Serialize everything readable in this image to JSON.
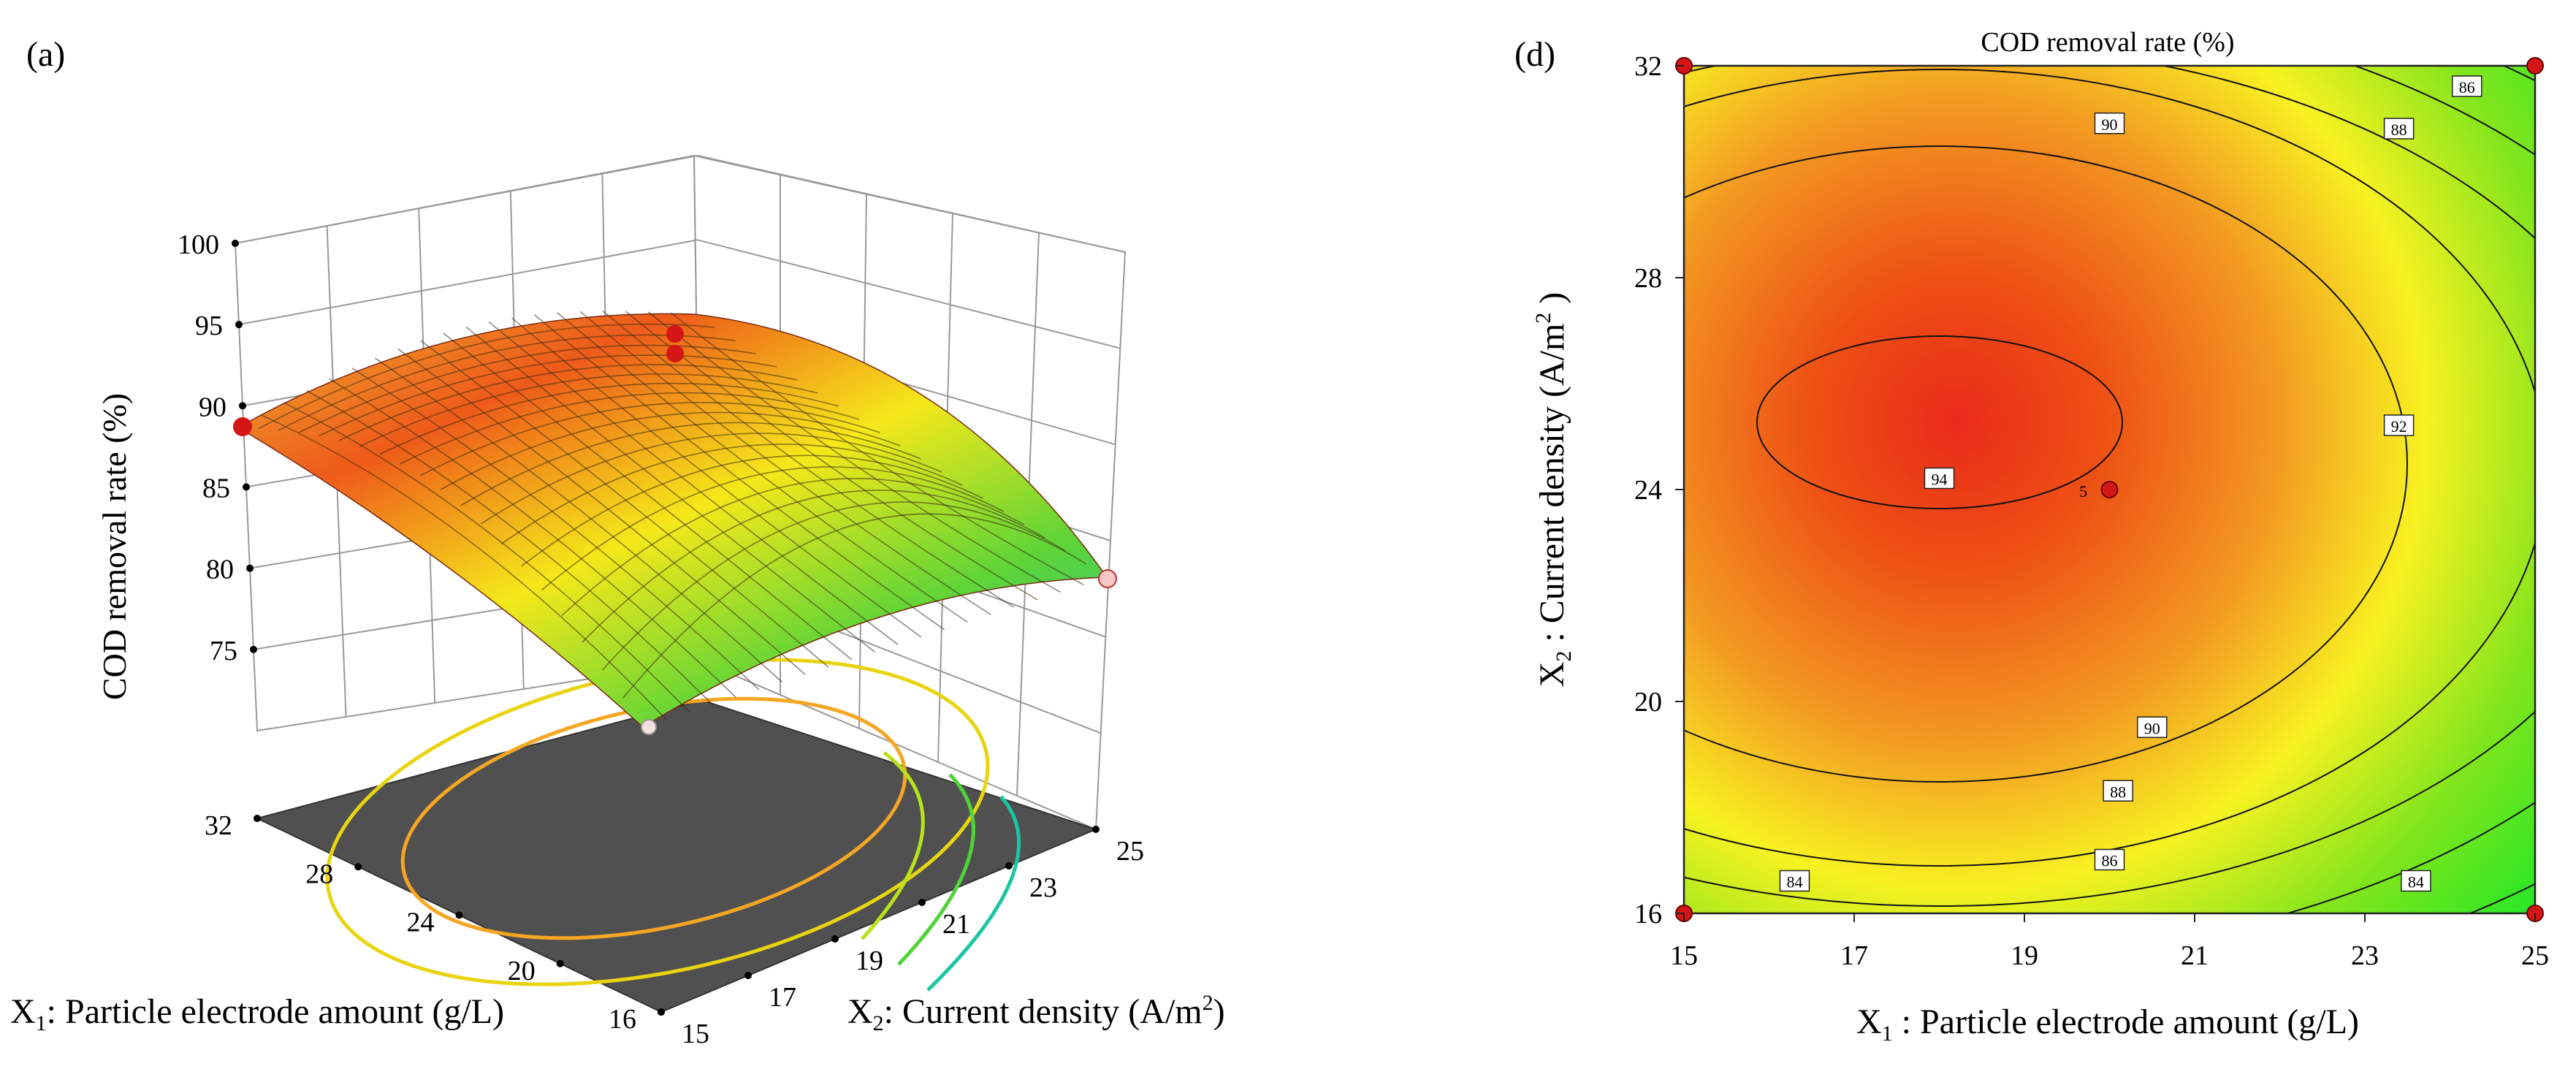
{
  "panel_a": {
    "label": "(a)",
    "zlabel": "COD removal rate (%)",
    "x1_label_main": "X",
    "x1_label_sub": "1",
    "x1_label_rest": ": Particle electrode amount (g/L)",
    "x2_label_main": "X",
    "x2_label_sub": "2",
    "x2_label_rest": ": Current density (A/m",
    "x2_label_sup": "2",
    "x2_label_end": ")"
  },
  "panel_d": {
    "label": "(d)",
    "title": "COD removal rate (%)",
    "xlabel_main": "X",
    "xlabel_sub": "1",
    "xlabel_rest": " : Particle electrode amount (g/L)",
    "ylabel_main": "X",
    "ylabel_sub": "2",
    "ylabel_rest": " : Current density (A/m",
    "ylabel_sup": "2",
    "ylabel_end": " )",
    "center_point_label": "5"
  },
  "chart_data": [
    {
      "type": "surface3d",
      "title": "",
      "zlabel": "COD removal rate (%)",
      "xlabel": "X1: Particle electrode amount (g/L)",
      "ylabel": "X2: Current density (A/m2)",
      "z_ticks": [
        75,
        80,
        85,
        90,
        95,
        100
      ],
      "x1_ticks": [
        16,
        20,
        24,
        28,
        32
      ],
      "x2_ticks": [
        15,
        17,
        19,
        21,
        23,
        25
      ],
      "zlim": [
        70,
        100
      ],
      "points": [
        {
          "label": "center",
          "z": 95.2
        },
        {
          "label": "center",
          "z": 94.1
        },
        {
          "label": "corner",
          "z": 88.9
        },
        {
          "label": "corner",
          "z": 79.5
        },
        {
          "label": "corner",
          "z": 72.5
        }
      ]
    },
    {
      "type": "contour",
      "title": "COD removal rate (%)",
      "xlabel": "X1 : Particle electrode amount (g/L)",
      "ylabel": "X2 : Current density (A/m2 )",
      "xlim": [
        15,
        25
      ],
      "ylim": [
        16,
        32
      ],
      "x_ticks": [
        15,
        17,
        19,
        21,
        23,
        25
      ],
      "y_ticks": [
        16,
        20,
        24,
        28,
        32
      ],
      "contour_levels": [
        84,
        86,
        88,
        90,
        92,
        94
      ],
      "contour_labels": [
        {
          "text": "86",
          "x": 24.2,
          "y": 31.6
        },
        {
          "text": "88",
          "x": 23.4,
          "y": 30.8
        },
        {
          "text": "90",
          "x": 20.0,
          "y": 30.9
        },
        {
          "text": "94",
          "x": 18.0,
          "y": 24.2
        },
        {
          "text": "92",
          "x": 23.4,
          "y": 25.2
        },
        {
          "text": "90",
          "x": 20.5,
          "y": 19.5
        },
        {
          "text": "88",
          "x": 20.1,
          "y": 18.3
        },
        {
          "text": "86",
          "x": 20.0,
          "y": 17.0
        },
        {
          "text": "84",
          "x": 16.3,
          "y": 16.6
        },
        {
          "text": "84",
          "x": 23.6,
          "y": 16.6
        }
      ],
      "design_points": [
        {
          "x": 15,
          "y": 16
        },
        {
          "x": 15,
          "y": 32
        },
        {
          "x": 25,
          "y": 16
        },
        {
          "x": 25,
          "y": 32
        },
        {
          "x": 20,
          "y": 24
        }
      ]
    }
  ]
}
